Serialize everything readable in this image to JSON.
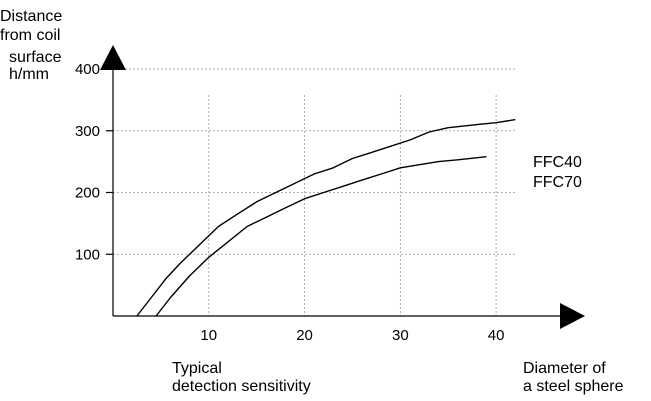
{
  "chart_data": {
    "type": "line",
    "ylabel": [
      "Distance",
      "from coil",
      "surface",
      "h/mm"
    ],
    "xlabel": [
      "Diameter of",
      "a steel sphere"
    ],
    "caption": [
      "Typical",
      "detection sensitivity"
    ],
    "xticks": [
      10,
      20,
      30,
      40
    ],
    "yticks": [
      100,
      200,
      300,
      400
    ],
    "xlim": [
      0,
      45
    ],
    "ylim": [
      0,
      400
    ],
    "grid": true,
    "series": [
      {
        "name": "FFC40",
        "x": [
          2.5,
          4,
          5.5,
          7,
          9,
          11,
          13,
          15,
          17,
          19,
          21,
          23,
          25,
          27,
          29,
          31,
          33,
          35,
          38,
          40,
          42
        ],
        "y": [
          0,
          30,
          60,
          85,
          115,
          145,
          165,
          185,
          200,
          215,
          230,
          240,
          255,
          265,
          275,
          285,
          298,
          305,
          310,
          313,
          318
        ]
      },
      {
        "name": "FFC70",
        "x": [
          4.5,
          6,
          8,
          10,
          12,
          14,
          16,
          18,
          20,
          22,
          24,
          26,
          28,
          30,
          32,
          34,
          36,
          39
        ],
        "y": [
          0,
          30,
          65,
          95,
          120,
          145,
          160,
          175,
          190,
          200,
          210,
          220,
          230,
          240,
          245,
          250,
          253,
          258
        ]
      }
    ]
  }
}
